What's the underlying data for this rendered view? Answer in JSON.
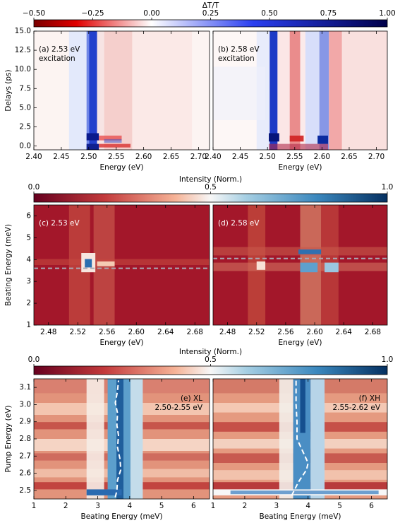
{
  "chart_data": [
    {
      "type": "colorbar",
      "label": "ΔT/T",
      "colormap": "seismic",
      "lim": [
        -0.5,
        1.0
      ],
      "ticks": [
        {
          "value": -0.5,
          "label": "−0.50"
        },
        {
          "value": -0.25,
          "label": "−0.25"
        },
        {
          "value": 0,
          "label": "0.00"
        },
        {
          "value": 0.25,
          "label": "0.25"
        },
        {
          "value": 0.5,
          "label": "0.50"
        },
        {
          "value": 0.75,
          "label": "0.75"
        },
        {
          "value": 1,
          "label": "1.00"
        }
      ]
    },
    {
      "type": "heatmap",
      "annotation": [
        "(a) 2.53 eV",
        "excitation"
      ],
      "annotation_color": "#000000",
      "xlabel": "Energy (eV)",
      "ylabel": "Delays (ps)",
      "xlim": [
        2.4,
        2.72
      ],
      "xticks": [
        {
          "value": 2.4,
          "label": "2.40"
        },
        2.45,
        {
          "value": 2.5,
          "label": "2.50"
        },
        2.55,
        {
          "value": 2.6,
          "label": "2.60"
        },
        2.65,
        {
          "value": 2.7,
          "label": "2.70"
        }
      ],
      "ylim": [
        -0.5,
        15
      ],
      "yticks": [
        {
          "value": 0,
          "label": "0.0"
        },
        2.5,
        {
          "value": 5,
          "label": "5.0"
        },
        7.5,
        {
          "value": 10,
          "label": "10.0"
        },
        12.5,
        {
          "value": 15,
          "label": "15.0"
        }
      ]
    },
    {
      "type": "heatmap",
      "annotation": [
        "(b) 2.58 eV",
        "excitation"
      ],
      "annotation_color": "#000000",
      "xlabel": "Energy (eV)",
      "xlim": [
        2.4,
        2.72
      ],
      "xticks": [
        {
          "value": 2.4,
          "label": "2.40"
        },
        2.45,
        {
          "value": 2.5,
          "label": "2.50"
        },
        2.55,
        {
          "value": 2.6,
          "label": "2.60"
        },
        2.65,
        {
          "value": 2.7,
          "label": "2.70"
        }
      ]
    },
    {
      "type": "colorbar",
      "label": "Intensity (Norm.)",
      "colormap": "RdBu_r",
      "lim": [
        0,
        1
      ],
      "ticks": [
        {
          "value": 0,
          "label": "0.0"
        },
        0.5,
        {
          "value": 1,
          "label": "1.0"
        }
      ]
    },
    {
      "type": "heatmap",
      "annotation": [
        "(c) 2.53 eV"
      ],
      "annotation_color": "#ffffff",
      "xlabel": "Energy (eV)",
      "ylabel": "Beating Energy (meV)",
      "xlim": [
        2.46,
        2.7
      ],
      "xticks": [
        2.48,
        2.52,
        2.56,
        {
          "value": 2.6,
          "label": "2.60"
        },
        2.64,
        2.68
      ],
      "ylim": [
        1,
        6.5
      ],
      "yticks": [
        1,
        2,
        3,
        4,
        5,
        6
      ],
      "hline": 3.6,
      "hline_color": "#a9a9b4"
    },
    {
      "type": "heatmap",
      "annotation": [
        "(d) 2.58 eV"
      ],
      "annotation_color": "#ffffff",
      "xlabel": "Energy (eV)",
      "xlim": [
        2.46,
        2.7
      ],
      "xticks": [
        2.48,
        2.52,
        2.56,
        {
          "value": 2.6,
          "label": "2.60"
        },
        2.64,
        2.68
      ],
      "ylim": [
        1,
        6.5
      ],
      "hline": 4.05,
      "hline_color": "#a9a9b4"
    },
    {
      "type": "colorbar",
      "label": "Intensity (Norm.)",
      "colormap": "RdBu_r",
      "lim": [
        0,
        1
      ],
      "ticks": [
        {
          "value": 0,
          "label": "0.0"
        },
        0.5,
        {
          "value": 1,
          "label": "1.0"
        }
      ]
    },
    {
      "type": "heatmap",
      "annotation": [
        "(e) XL",
        "2.50-2.55 eV"
      ],
      "annotation_color": "#000000",
      "xlabel": "Beating Energy (meV)",
      "ylabel": "Pump Energy (eV)",
      "xlim": [
        1,
        6.5
      ],
      "xticks": [
        1,
        2,
        3,
        4,
        5,
        6
      ],
      "ylim": [
        2.45,
        3.15
      ],
      "yticks": [
        2.5,
        2.6,
        2.7,
        2.8,
        2.9,
        {
          "value": 3,
          "label": "3.0"
        },
        3.1
      ],
      "x": [
        3.55,
        3.6,
        3.62,
        3.72,
        3.7,
        3.62,
        3.65,
        3.6,
        3.62,
        3.55,
        3.62,
        3.65
      ],
      "values": [
        2.46,
        2.5,
        2.56,
        2.62,
        2.68,
        2.75,
        2.82,
        2.88,
        2.95,
        3.01,
        3.08,
        3.14
      ],
      "line_color": "#ffffff"
    },
    {
      "type": "heatmap",
      "annotation": [
        "(f) XH",
        "2.55-2.62 eV"
      ],
      "annotation_color": "#000000",
      "xlabel": "Beating Energy (meV)",
      "xlim": [
        1,
        6.5
      ],
      "xticks": [
        1,
        2,
        3,
        4,
        5,
        6
      ],
      "ylim": [
        2.45,
        3.15
      ],
      "x": [
        3.48,
        3.7,
        3.95,
        4.0,
        3.8,
        3.65,
        3.65,
        3.62,
        3.62,
        3.62
      ],
      "values": [
        2.47,
        2.55,
        2.62,
        2.66,
        2.74,
        2.8,
        2.9,
        3.0,
        3.1,
        3.14
      ],
      "line_color": "#ffffff"
    }
  ]
}
